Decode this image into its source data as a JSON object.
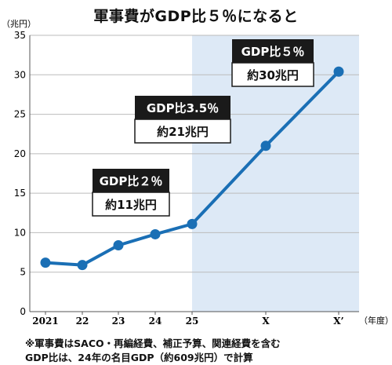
{
  "title": "軍事費がGDP比５％になると",
  "chart_data": {
    "type": "line",
    "title": "軍事費がGDP比５％になると",
    "y_unit": "（兆円）",
    "x_unit": "（年度）",
    "categories": [
      "2021",
      "22",
      "23",
      "24",
      "25",
      "X",
      "X’"
    ],
    "values": [
      6.2,
      5.9,
      8.4,
      9.8,
      11.1,
      21.0,
      30.4
    ],
    "ylim": [
      0,
      35
    ],
    "yticks": [
      0,
      5,
      10,
      15,
      20,
      25,
      30,
      35
    ],
    "grid": "horizontal",
    "projection_shading_from": "25",
    "line_color": "#1a6fb5",
    "shade_color": "#dde9f6",
    "annotations": [
      {
        "category": "25",
        "ratio": "GDP比２％",
        "amount": "約11兆円"
      },
      {
        "category": "X",
        "ratio": "GDP比3.5％",
        "amount": "約21兆円"
      },
      {
        "category": "X’",
        "ratio": "GDP比５％",
        "amount": "約30兆円"
      }
    ]
  },
  "notes": [
    "※軍事費はSACO・再編経費、補正予算、関連経費を含む",
    "GDP比は、24年の名目GDP（約609兆円）で計算"
  ]
}
